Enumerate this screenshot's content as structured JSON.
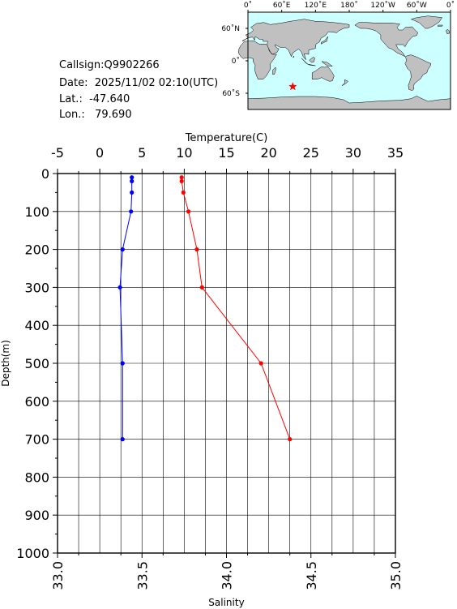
{
  "info": {
    "callsign": "Callsign:Q9902266",
    "date": "Date:  2025/11/02 02:10(UTC)",
    "lat": "Lat.:  -47.640",
    "lon": "Lon.:   79.690"
  },
  "map": {
    "top_labels": [
      "0˚",
      "60˚E",
      "120˚E",
      "180˚",
      "120˚W",
      "60˚W",
      "0˚"
    ],
    "left_labels": [
      "60˚N",
      "0˚",
      "60˚S"
    ],
    "ocean_color": "#ccffff",
    "land_color": "#c0c0c0",
    "marker": {
      "lon": 79.69,
      "lat": -47.64,
      "color": "#ff0000"
    }
  },
  "chart_data": {
    "type": "line",
    "title": "",
    "depth_axis": {
      "label": "Depth(m)",
      "range": [
        0,
        1000
      ],
      "inverted": true,
      "ticks": [
        "0",
        "100",
        "200",
        "300",
        "400",
        "500",
        "600",
        "700",
        "800",
        "900",
        "1000"
      ]
    },
    "temperature_axis": {
      "label": "Temperature(C)",
      "range": [
        -5,
        35
      ],
      "position": "top",
      "ticks": [
        "-5",
        "0",
        "5",
        "10",
        "15",
        "20",
        "25",
        "30",
        "35"
      ]
    },
    "salinity_axis": {
      "label": "Salinity",
      "range": [
        33.0,
        35.0
      ],
      "position": "bottom",
      "ticks": [
        "33.0",
        "33.5",
        "34.0",
        "34.5",
        "35.0"
      ]
    },
    "grid": true,
    "series": [
      {
        "variable": "temperature",
        "color": "#0000ff",
        "depth": [
          10,
          20,
          50,
          100,
          200,
          300,
          500,
          700
        ],
        "values": [
          3.8,
          3.8,
          3.8,
          3.7,
          2.7,
          2.4,
          2.7,
          2.7
        ]
      },
      {
        "variable": "salinity",
        "color": "#ff0000",
        "depth": [
          10,
          20,
          50,
          100,
          200,
          300,
          500,
          700
        ],
        "values": [
          33.735,
          33.735,
          33.745,
          33.775,
          33.825,
          33.855,
          34.205,
          34.375
        ]
      }
    ]
  }
}
